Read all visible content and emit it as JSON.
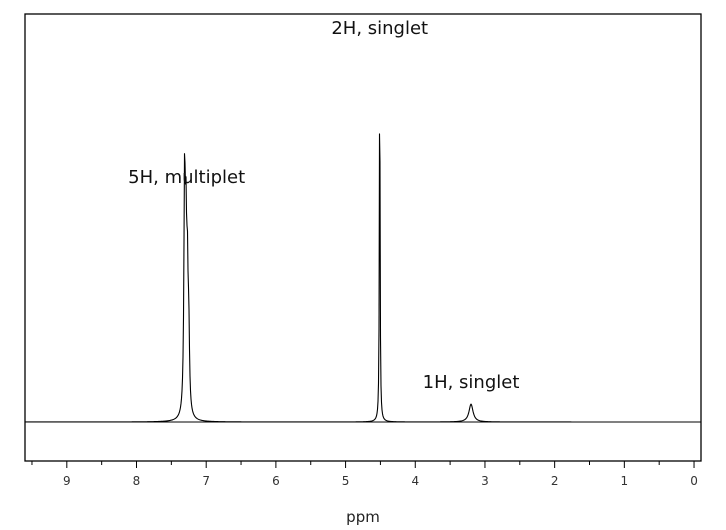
{
  "chart_data": {
    "type": "line",
    "xlabel": "ppm",
    "ylabel": "",
    "xlim": [
      9.6,
      -0.1
    ],
    "x_reversed": true,
    "ticks": [
      9,
      8,
      7,
      6,
      5,
      4,
      3,
      2,
      1,
      0
    ],
    "grid": false,
    "peaks": [
      {
        "label": "5H, multiplet",
        "center": 7.28,
        "height": 0.6,
        "lines": [
          {
            "ppm": 7.31,
            "height": 0.6
          },
          {
            "ppm": 7.29,
            "height": 0.4
          },
          {
            "ppm": 7.27,
            "height": 0.32
          },
          {
            "ppm": 7.25,
            "height": 0.2
          }
        ]
      },
      {
        "label": "2H, singlet",
        "center": 4.51,
        "height": 1.0,
        "lines": [
          {
            "ppm": 4.51,
            "height": 1.0
          }
        ]
      },
      {
        "label": "1H, singlet",
        "center": 3.2,
        "height": 0.048,
        "lines": [
          {
            "ppm": 3.2,
            "height": 0.048
          }
        ]
      }
    ]
  }
}
